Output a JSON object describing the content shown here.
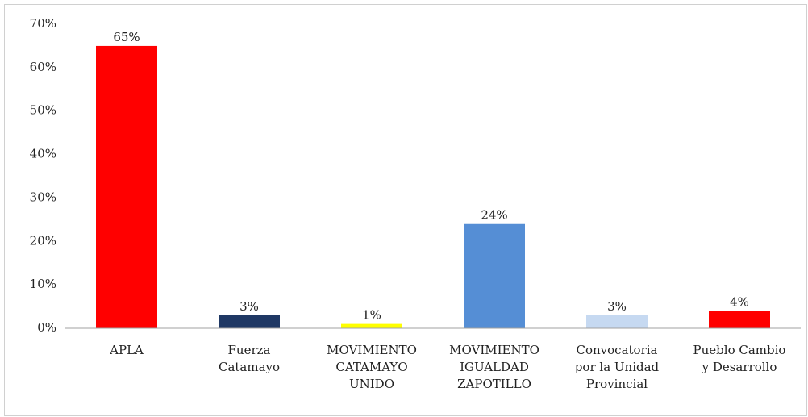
{
  "chart_data": {
    "type": "bar",
    "categories": [
      "APLA",
      "Fuerza\nCatamayo",
      "MOVIMIENTO\nCATAMAYO\nUNIDO",
      "MOVIMIENTO\nIGUALDAD\nZAPOTILLO",
      "Convocatoria\npor la Unidad\nProvincial",
      "Pueblo Cambio\ny Desarrollo"
    ],
    "values": [
      65,
      3,
      1,
      24,
      3,
      4
    ],
    "value_labels": [
      "65%",
      "3%",
      "1%",
      "24%",
      "3%",
      "4%"
    ],
    "colors": [
      "#ff0000",
      "#1f3864",
      "#ffff00",
      "#558ed5",
      "#c6d9f1",
      "#ff0000"
    ],
    "ylim": [
      0,
      70
    ],
    "yticks": [
      {
        "value": 0,
        "label": "0%"
      },
      {
        "value": 10,
        "label": "10%"
      },
      {
        "value": 20,
        "label": "20%"
      },
      {
        "value": 30,
        "label": "30%"
      },
      {
        "value": 40,
        "label": "40%"
      },
      {
        "value": 50,
        "label": "50%"
      },
      {
        "value": 60,
        "label": "60%"
      },
      {
        "value": 70,
        "label": "70%"
      }
    ],
    "grid": false
  }
}
